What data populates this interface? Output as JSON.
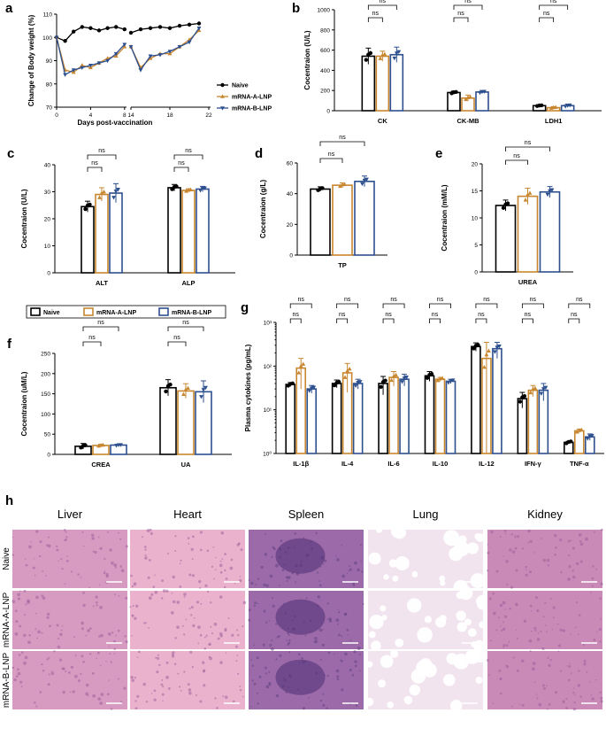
{
  "colors": {
    "naive": "#000000",
    "a": "#c8862f",
    "b": "#2d4f8e"
  },
  "legend": {
    "naive": "Naive",
    "a": "mRNA-A-LNP",
    "b": "mRNA-B-LNP"
  },
  "panels": {
    "a": "a",
    "b": "b",
    "c": "c",
    "d": "d",
    "e": "e",
    "f": "f",
    "g": "g",
    "h": "h"
  },
  "histology": {
    "columns": [
      "Liver",
      "Heart",
      "Spleen",
      "Lung",
      "Kidney"
    ],
    "rows": [
      "Naive",
      "mRNA-A-LNP",
      "mRNA-B-LNP"
    ],
    "tissue_colors": [
      "#d79ac0",
      "#eab2cd",
      "#9c6aa8",
      "#f1e4ee",
      "#c98ab8"
    ]
  },
  "chart_data": [
    {
      "id": "a",
      "type": "line",
      "title": "",
      "ylabel": "Change of Body weight (%)",
      "xlabel": "Days post-vaccination",
      "ylim": [
        70,
        110
      ],
      "yticks": [
        "70",
        "80",
        "90",
        "100",
        "110"
      ],
      "xticks": [
        "0",
        "4",
        "8",
        "14",
        "18",
        "22"
      ],
      "xticks_num": [
        0,
        4,
        8,
        14,
        18,
        22
      ],
      "series": [
        {
          "name": "Naive",
          "key": "naive",
          "x": [
            0,
            1,
            2,
            3,
            4,
            5,
            6,
            7,
            8,
            14,
            15,
            16,
            17,
            18,
            19,
            20,
            21
          ],
          "y": [
            100,
            98.5,
            102.5,
            104.5,
            104,
            103,
            104,
            104.5,
            103.5,
            102,
            103.5,
            104,
            104.5,
            104,
            105,
            105.5,
            106
          ]
        },
        {
          "name": "mRNA-A-LNP",
          "key": "a",
          "x": [
            0,
            1,
            2,
            3,
            4,
            5,
            6,
            7,
            8,
            14,
            15,
            16,
            17,
            18,
            19,
            20,
            21
          ],
          "y": [
            100,
            86,
            85,
            88,
            87,
            89,
            91,
            92,
            96,
            96,
            87,
            91,
            93,
            93,
            96,
            99,
            103
          ]
        },
        {
          "name": "mRNA-B-LNP",
          "key": "b",
          "x": [
            0,
            1,
            2,
            3,
            4,
            5,
            6,
            7,
            8,
            14,
            15,
            16,
            17,
            18,
            19,
            20,
            21
          ],
          "y": [
            100,
            84,
            86,
            87,
            88,
            89,
            90,
            93,
            97,
            96,
            86,
            92,
            92.5,
            94,
            96,
            98,
            104
          ]
        }
      ]
    },
    {
      "id": "b",
      "type": "bar",
      "ylabel": "Cocentraion (U/L)",
      "ylim": [
        0,
        1000
      ],
      "yticks": [
        "0",
        "200",
        "400",
        "600",
        "800",
        "1000"
      ],
      "categories": [
        "CK",
        "CK-MB",
        "LDH1"
      ],
      "series": [
        {
          "name": "Naive",
          "key": "naive",
          "values": [
            540,
            180,
            50
          ],
          "errors": [
            80,
            15,
            8
          ]
        },
        {
          "name": "mRNA-A-LNP",
          "key": "a",
          "values": [
            540,
            125,
            30
          ],
          "errors": [
            50,
            30,
            10
          ]
        },
        {
          "name": "mRNA-B-LNP",
          "key": "b",
          "values": [
            555,
            185,
            50
          ],
          "errors": [
            75,
            15,
            15
          ]
        }
      ],
      "annotations": [
        "ns",
        "ns"
      ]
    },
    {
      "id": "c",
      "type": "bar",
      "ylabel": "Cocentraion (U/L)",
      "ylim": [
        0,
        40
      ],
      "yticks": [
        "0",
        "10",
        "20",
        "30",
        "40"
      ],
      "categories": [
        "ALT",
        "ALP"
      ],
      "series": [
        {
          "name": "Naive",
          "key": "naive",
          "values": [
            24.5,
            31.5
          ],
          "errors": [
            2,
            1.2
          ]
        },
        {
          "name": "mRNA-A-LNP",
          "key": "a",
          "values": [
            29,
            30.5
          ],
          "errors": [
            2.5,
            0.6
          ]
        },
        {
          "name": "mRNA-B-LNP",
          "key": "b",
          "values": [
            29.5,
            31
          ],
          "errors": [
            3.5,
            1
          ]
        }
      ],
      "annotations": [
        "ns",
        "ns"
      ]
    },
    {
      "id": "d",
      "type": "bar",
      "ylabel": "Cocentraion (g/L)",
      "ylim": [
        0,
        60
      ],
      "yticks": [
        "0",
        "20",
        "40",
        "60"
      ],
      "categories": [
        "TP"
      ],
      "series": [
        {
          "name": "Naive",
          "key": "naive",
          "values": [
            43
          ],
          "errors": [
            1.5
          ]
        },
        {
          "name": "mRNA-A-LNP",
          "key": "a",
          "values": [
            45.5
          ],
          "errors": [
            1.5
          ]
        },
        {
          "name": "mRNA-B-LNP",
          "key": "b",
          "values": [
            48
          ],
          "errors": [
            3.5
          ]
        }
      ],
      "annotations": [
        "ns",
        "ns"
      ]
    },
    {
      "id": "e",
      "type": "bar",
      "ylabel": "Cocentraion (mM/L)",
      "ylim": [
        0,
        20
      ],
      "yticks": [
        "0",
        "5",
        "10",
        "15",
        "20"
      ],
      "categories": [
        "UREA"
      ],
      "series": [
        {
          "name": "Naive",
          "key": "naive",
          "values": [
            12.3
          ],
          "errors": [
            1
          ]
        },
        {
          "name": "mRNA-A-LNP",
          "key": "a",
          "values": [
            14
          ],
          "errors": [
            1.5
          ]
        },
        {
          "name": "mRNA-B-LNP",
          "key": "b",
          "values": [
            14.8
          ],
          "errors": [
            1
          ]
        }
      ],
      "annotations": [
        "ns",
        "ns"
      ]
    },
    {
      "id": "f",
      "type": "bar",
      "ylabel": "Cocentraion (uM/L)",
      "ylim": [
        0,
        250
      ],
      "yticks": [
        "0",
        "50",
        "100",
        "150",
        "200",
        "250"
      ],
      "categories": [
        "CREA",
        "UA"
      ],
      "series": [
        {
          "name": "Naive",
          "key": "naive",
          "values": [
            20,
            165
          ],
          "errors": [
            7,
            20
          ]
        },
        {
          "name": "mRNA-A-LNP",
          "key": "a",
          "values": [
            22,
            157
          ],
          "errors": [
            3,
            18
          ]
        },
        {
          "name": "mRNA-B-LNP",
          "key": "b",
          "values": [
            23,
            155
          ],
          "errors": [
            2,
            27
          ]
        }
      ],
      "annotations": [
        "ns",
        "ns"
      ]
    },
    {
      "id": "g",
      "type": "bar",
      "yscale": "log",
      "ylabel": "Plasma cytokines (pg/mL)",
      "ylim": [
        1,
        1000
      ],
      "yticks": [
        "10⁰",
        "10¹",
        "10²",
        "10³"
      ],
      "categories": [
        "IL-1β",
        "IL-4",
        "IL-6",
        "IL-10",
        "IL-12",
        "IFN-γ",
        "TNF-α"
      ],
      "series": [
        {
          "name": "Naive",
          "key": "naive",
          "values": [
            38,
            40,
            40,
            60,
            280,
            18,
            1.8
          ],
          "errors": [
            4,
            8,
            18,
            15,
            60,
            7,
            0.1
          ]
        },
        {
          "name": "mRNA-A-LNP",
          "key": "a",
          "values": [
            90,
            70,
            55,
            50,
            150,
            28,
            3.3
          ],
          "errors": [
            60,
            45,
            20,
            5,
            200,
            8,
            0.3
          ]
        },
        {
          "name": "mRNA-B-LNP",
          "key": "b",
          "values": [
            30,
            40,
            50,
            45,
            250,
            28,
            2.4
          ],
          "errors": [
            6,
            10,
            15,
            5,
            100,
            12,
            0.4
          ]
        }
      ],
      "annotations": [
        "ns",
        "ns"
      ]
    }
  ]
}
